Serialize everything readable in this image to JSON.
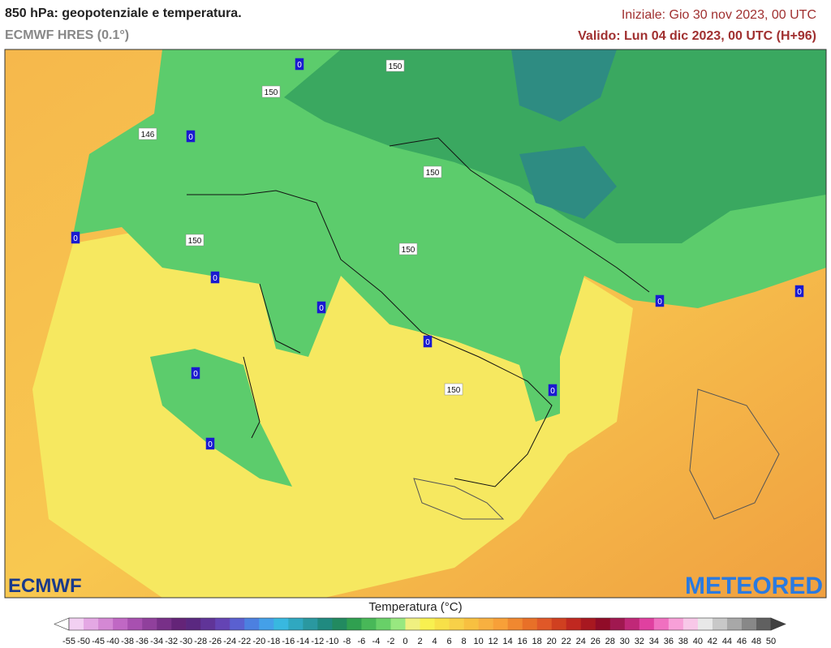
{
  "header": {
    "title": "850 hPa: geopotenziale e temperatura.",
    "subtitle": "ECMWF HRES (0.1°)",
    "init": "Iniziale: Gio 30 nov 2023, 00 UTC",
    "valid": "Valido: Lun 04 dic 2023, 00 UTC (H+96)"
  },
  "map": {
    "contour_labels": [
      "0",
      "150",
      "150",
      "146",
      "0",
      "150",
      "0",
      "150",
      "0",
      "150",
      "0",
      "0",
      "0",
      "150",
      "0",
      "0",
      "0",
      "0"
    ]
  },
  "logos": {
    "left": "ECMWF",
    "right": "METEORED"
  },
  "colorbar": {
    "label": "Temperatura (°C)",
    "ticks": [
      -55,
      -50,
      -45,
      -40,
      -38,
      -36,
      -34,
      -32,
      -30,
      -28,
      -26,
      -24,
      -22,
      -20,
      -18,
      -16,
      -14,
      -12,
      -10,
      -8,
      -6,
      -4,
      -2,
      0,
      2,
      4,
      6,
      8,
      10,
      12,
      14,
      16,
      18,
      20,
      22,
      24,
      26,
      28,
      30,
      32,
      34,
      36,
      38,
      40,
      42,
      44,
      46,
      48,
      50
    ],
    "colors": [
      "#f2d0f2",
      "#e4a8e4",
      "#d488d4",
      "#c068c4",
      "#a850b0",
      "#90409c",
      "#783088",
      "#642478",
      "#5a2880",
      "#603498",
      "#6444b4",
      "#5a60d0",
      "#4c80e0",
      "#44a0e8",
      "#38b8e0",
      "#30a8c0",
      "#2a98a0",
      "#208a80",
      "#228a60",
      "#30a050",
      "#48b858",
      "#68d068",
      "#98e880",
      "#f0f080",
      "#f8f050",
      "#f8e048",
      "#f8d048",
      "#f8c040",
      "#f8b040",
      "#f8a038",
      "#f08830",
      "#e87028",
      "#e05828",
      "#d04020",
      "#c02820",
      "#a81820",
      "#900c28",
      "#a01850",
      "#c02878",
      "#e040a0",
      "#f070c0",
      "#f8a0d8",
      "#f8c8e8",
      "#e8e8e8",
      "#c8c8c8",
      "#a8a8a8",
      "#888888",
      "#606060"
    ],
    "under_color": "#ffffff",
    "over_color": "#404040"
  }
}
